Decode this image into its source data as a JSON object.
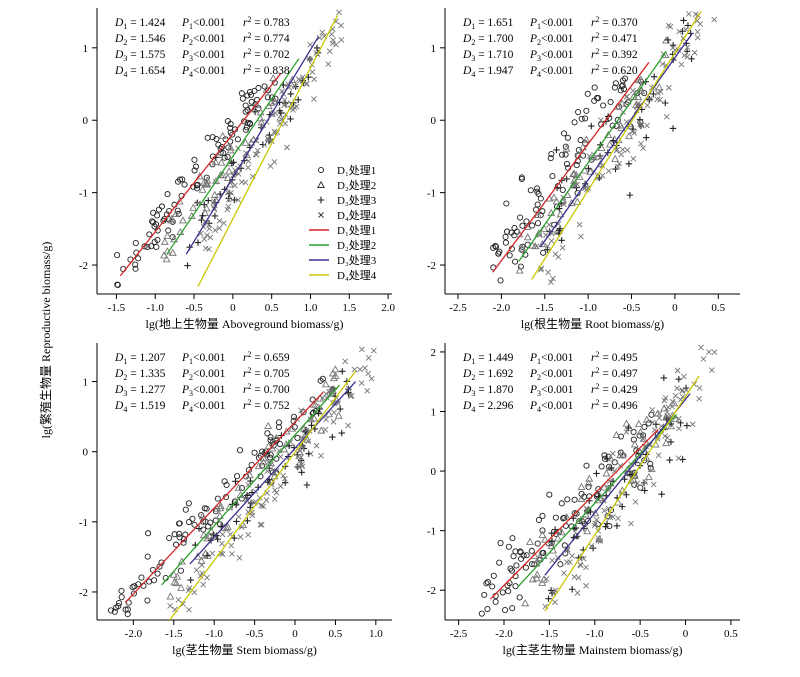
{
  "figure": {
    "shared_ylabel": "lg(繁殖生物量 Reproductive biomass/g)"
  },
  "legend": {
    "items": [
      {
        "label": "D₁处理1",
        "kind": "marker",
        "marker": "circle"
      },
      {
        "label": "D₂处理2",
        "kind": "marker",
        "marker": "triangle"
      },
      {
        "label": "D₃处理3",
        "kind": "marker",
        "marker": "plus"
      },
      {
        "label": "D₄处理4",
        "kind": "marker",
        "marker": "cross"
      },
      {
        "label": "D₁处理1",
        "kind": "line",
        "color": "#d62728"
      },
      {
        "label": "D₂处理2",
        "kind": "line",
        "color": "#2ca02c"
      },
      {
        "label": "D₃处理3",
        "kind": "line",
        "color": "#3a2f8f"
      },
      {
        "label": "D₄处理4",
        "kind": "line",
        "color": "#c8c800"
      }
    ]
  },
  "colors": {
    "D1": "#d62728",
    "D2": "#2ca02c",
    "D3": "#3a2f8f",
    "D4": "#c8c800",
    "marker": "#222222",
    "marker_light": "#777777"
  },
  "chart_data": [
    {
      "type": "scatter",
      "panel": "top-left",
      "xlabel": "lg(地上生物量 Aboveground biomass/g)",
      "ylabel": "",
      "xlim": [
        -1.75,
        2.05
      ],
      "ylim": [
        -2.4,
        1.55
      ],
      "xticks": [
        -1.5,
        -1.0,
        -0.5,
        0,
        0.5,
        1.0,
        1.5,
        2.0
      ],
      "xtick_labels": [
        "-1.5",
        "-1.0",
        "-0.5",
        "0",
        "0.5",
        "1.0",
        "1.5",
        "2.0"
      ],
      "yticks": [
        -2,
        -1,
        0,
        1
      ],
      "ytick_labels": [
        "-2",
        "-1",
        "0",
        "1"
      ],
      "stats": [
        {
          "D": "1.424",
          "P": "<0.001",
          "r2": "0.783"
        },
        {
          "D": "1.546",
          "P": "<0.001",
          "r2": "0.774"
        },
        {
          "D": "1.575",
          "P": "<0.001",
          "r2": "0.702"
        },
        {
          "D": "1.654",
          "P": "<0.001",
          "r2": "0.838"
        }
      ],
      "fits": [
        {
          "series": "D1",
          "x": [
            -1.45,
            0.62
          ],
          "y": [
            -2.15,
            0.65
          ]
        },
        {
          "series": "D2",
          "x": [
            -0.85,
            0.85
          ],
          "y": [
            -1.85,
            0.85
          ]
        },
        {
          "series": "D3",
          "x": [
            -0.6,
            1.1
          ],
          "y": [
            -1.85,
            1.15
          ]
        },
        {
          "series": "D4",
          "x": [
            -0.45,
            1.35
          ],
          "y": [
            -2.3,
            1.45
          ]
        }
      ],
      "scatter": [
        {
          "series": "D1",
          "x_range": [
            -1.5,
            0.6
          ],
          "slope": 1.424,
          "intercept": -0.1,
          "n": 110,
          "spread": 0.17
        },
        {
          "series": "D2",
          "x_range": [
            -0.9,
            0.9
          ],
          "slope": 1.546,
          "intercept": -0.45,
          "n": 65,
          "spread": 0.2
        },
        {
          "series": "D3",
          "x_range": [
            -0.6,
            1.1
          ],
          "slope": 1.575,
          "intercept": -0.75,
          "n": 55,
          "spread": 0.22
        },
        {
          "series": "D4",
          "x_range": [
            -0.45,
            1.45
          ],
          "slope": 1.654,
          "intercept": -0.95,
          "n": 110,
          "spread": 0.2
        }
      ]
    },
    {
      "type": "scatter",
      "panel": "top-right",
      "xlabel": "lg(根生物量 Root biomass/g)",
      "ylabel": "",
      "xlim": [
        -2.65,
        0.75
      ],
      "ylim": [
        -2.4,
        1.55
      ],
      "xticks": [
        -2.5,
        -2.0,
        -1.5,
        -1.0,
        -0.5,
        0,
        0.5
      ],
      "xtick_labels": [
        "-2.5",
        "-2.0",
        "-1.5",
        "-1.0",
        "-0.5",
        "0",
        "0.5"
      ],
      "yticks": [
        -2,
        -1,
        0,
        1
      ],
      "ytick_labels": [
        "-2",
        "-1",
        "0",
        "1"
      ],
      "stats": [
        {
          "D": "1.651",
          "P": "<0.001",
          "r2": "0.370"
        },
        {
          "D": "1.700",
          "P": "<0.001",
          "r2": "0.471"
        },
        {
          "D": "1.710",
          "P": "<0.001",
          "r2": "0.392"
        },
        {
          "D": "1.947",
          "P": "<0.001",
          "r2": "0.620"
        }
      ],
      "fits": [
        {
          "series": "D1",
          "x": [
            -2.1,
            -0.3
          ],
          "y": [
            -2.1,
            0.8
          ]
        },
        {
          "series": "D2",
          "x": [
            -1.8,
            -0.1
          ],
          "y": [
            -1.95,
            0.95
          ]
        },
        {
          "series": "D3",
          "x": [
            -1.55,
            0.2
          ],
          "y": [
            -1.75,
            1.2
          ]
        },
        {
          "series": "D4",
          "x": [
            -1.65,
            0.3
          ],
          "y": [
            -2.2,
            1.5
          ]
        }
      ],
      "scatter": [
        {
          "series": "D1",
          "x_range": [
            -2.1,
            -0.3
          ],
          "slope": 1.651,
          "intercept": 1.4,
          "n": 110,
          "spread": 0.3
        },
        {
          "series": "D2",
          "x_range": [
            -1.8,
            -0.1
          ],
          "slope": 1.7,
          "intercept": 1.1,
          "n": 65,
          "spread": 0.3
        },
        {
          "series": "D3",
          "x_range": [
            -1.55,
            0.2
          ],
          "slope": 1.71,
          "intercept": 0.85,
          "n": 55,
          "spread": 0.35
        },
        {
          "series": "D4",
          "x_range": [
            -1.65,
            0.5
          ],
          "slope": 1.947,
          "intercept": 0.95,
          "n": 110,
          "spread": 0.3
        }
      ]
    },
    {
      "type": "scatter",
      "panel": "bottom-left",
      "xlabel": "lg(茎生物量 Stem biomass/g)",
      "ylabel": "",
      "xlim": [
        -2.45,
        1.2
      ],
      "ylim": [
        -2.4,
        1.55
      ],
      "xticks": [
        -2.0,
        -1.5,
        -1.0,
        -0.5,
        0,
        0.5,
        1.0
      ],
      "xtick_labels": [
        "-2.0",
        "-1.5",
        "-1.0",
        "-0.5",
        "0",
        "0.5",
        "1.0"
      ],
      "yticks": [
        -2,
        -1,
        0,
        1
      ],
      "ytick_labels": [
        "-2",
        "-1",
        "0",
        "1"
      ],
      "stats": [
        {
          "D": "1.207",
          "P": "<0.001",
          "r2": "0.659"
        },
        {
          "D": "1.335",
          "P": "<0.001",
          "r2": "0.705"
        },
        {
          "D": "1.277",
          "P": "<0.001",
          "r2": "0.700"
        },
        {
          "D": "1.519",
          "P": "<0.001",
          "r2": "0.752"
        }
      ],
      "fits": [
        {
          "series": "D1",
          "x": [
            -2.1,
            0.35
          ],
          "y": [
            -2.15,
            0.85
          ]
        },
        {
          "series": "D2",
          "x": [
            -1.65,
            0.55
          ],
          "y": [
            -1.9,
            0.95
          ]
        },
        {
          "series": "D3",
          "x": [
            -1.3,
            0.75
          ],
          "y": [
            -1.6,
            1.0
          ]
        },
        {
          "series": "D4",
          "x": [
            -1.55,
            0.75
          ],
          "y": [
            -2.4,
            1.15
          ]
        }
      ],
      "scatter": [
        {
          "series": "D1",
          "x_range": [
            -2.3,
            0.35
          ],
          "slope": 1.207,
          "intercept": 0.4,
          "n": 110,
          "spread": 0.2
        },
        {
          "series": "D2",
          "x_range": [
            -1.7,
            0.55
          ],
          "slope": 1.335,
          "intercept": 0.25,
          "n": 65,
          "spread": 0.22
        },
        {
          "series": "D3",
          "x_range": [
            -1.3,
            0.75
          ],
          "slope": 1.277,
          "intercept": 0.05,
          "n": 55,
          "spread": 0.25
        },
        {
          "series": "D4",
          "x_range": [
            -1.55,
            1.0
          ],
          "slope": 1.519,
          "intercept": -0.05,
          "n": 110,
          "spread": 0.22
        }
      ]
    },
    {
      "type": "scatter",
      "panel": "bottom-right",
      "xlabel": "lg(主茎生物量 Mainstem biomass/g)",
      "ylabel": "",
      "xlim": [
        -2.65,
        0.6
      ],
      "ylim": [
        -2.5,
        2.15
      ],
      "xticks": [
        -2.5,
        -2.0,
        -1.5,
        -1.0,
        -0.5,
        0,
        0.5
      ],
      "xtick_labels": [
        "-2.5",
        "-2.0",
        "-1.5",
        "-1.0",
        "-0.5",
        "0",
        "0.5"
      ],
      "yticks": [
        -2,
        -1,
        0,
        1,
        2
      ],
      "ytick_labels": [
        "-2",
        "-1",
        "0",
        "1",
        "2"
      ],
      "stats": [
        {
          "D": "1.449",
          "P": "<0.001",
          "r2": "0.495"
        },
        {
          "D": "1.692",
          "P": "<0.001",
          "r2": "0.497"
        },
        {
          "D": "1.870",
          "P": "<0.001",
          "r2": "0.429"
        },
        {
          "D": "2.296",
          "P": "<0.001",
          "r2": "0.496"
        }
      ],
      "fits": [
        {
          "series": "D1",
          "x": [
            -2.15,
            -0.3
          ],
          "y": [
            -2.15,
            0.7
          ]
        },
        {
          "series": "D2",
          "x": [
            -1.85,
            -0.1
          ],
          "y": [
            -1.95,
            0.95
          ]
        },
        {
          "series": "D3",
          "x": [
            -1.55,
            0.05
          ],
          "y": [
            -1.75,
            1.3
          ]
        },
        {
          "series": "D4",
          "x": [
            -1.55,
            0.15
          ],
          "y": [
            -2.35,
            1.6
          ]
        }
      ],
      "scatter": [
        {
          "series": "D1",
          "x_range": [
            -2.25,
            -0.3
          ],
          "slope": 1.449,
          "intercept": 1.0,
          "n": 110,
          "spread": 0.35
        },
        {
          "series": "D2",
          "x_range": [
            -1.85,
            -0.1
          ],
          "slope": 1.692,
          "intercept": 1.1,
          "n": 65,
          "spread": 0.35
        },
        {
          "series": "D3",
          "x_range": [
            -1.55,
            0.05
          ],
          "slope": 1.87,
          "intercept": 1.15,
          "n": 55,
          "spread": 0.4
        },
        {
          "series": "D4",
          "x_range": [
            -1.55,
            0.35
          ],
          "slope": 2.296,
          "intercept": 1.3,
          "n": 110,
          "spread": 0.38
        }
      ]
    }
  ]
}
